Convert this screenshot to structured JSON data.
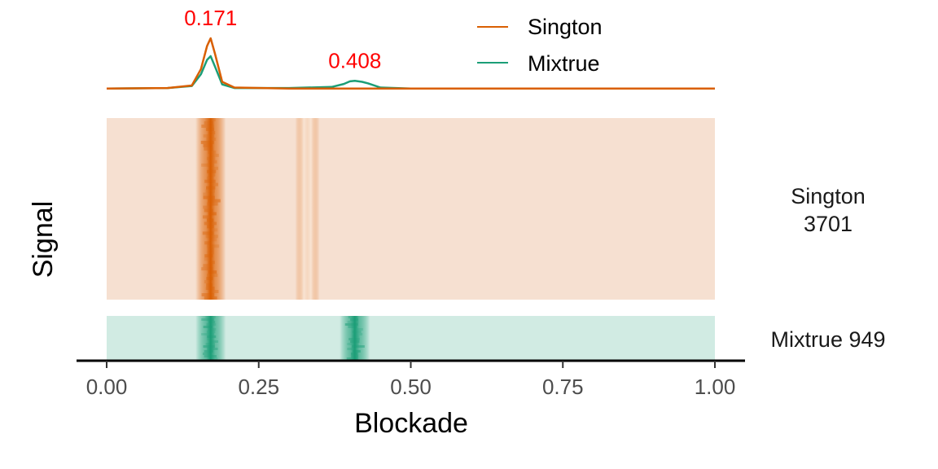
{
  "chart_data": {
    "type": "line+heatmap",
    "xlabel": "Blockade",
    "ylabel": "Signal",
    "xlim": [
      0,
      1
    ],
    "x_ticks": [
      "0.00",
      "0.25",
      "0.50",
      "0.75",
      "1.00"
    ],
    "legend": {
      "placement": "top-center",
      "entries": [
        "Sington",
        "Mixtrue"
      ]
    },
    "colors": {
      "Sington": "#d95f02",
      "Mixtrue": "#1b9e77",
      "Sington_bg": "#f6e0d1",
      "Mixtrue_bg": "#d1ebe3",
      "annotation": "#ff0000"
    },
    "density_series": [
      {
        "name": "Sington",
        "x": [
          0.0,
          0.1,
          0.14,
          0.155,
          0.165,
          0.171,
          0.178,
          0.19,
          0.21,
          0.3,
          0.37,
          0.4,
          0.408,
          0.42,
          0.45,
          0.5,
          1.0
        ],
        "y": [
          0.02,
          0.03,
          0.08,
          0.4,
          0.85,
          1.0,
          0.7,
          0.15,
          0.04,
          0.02,
          0.02,
          0.02,
          0.02,
          0.02,
          0.02,
          0.02,
          0.02
        ]
      },
      {
        "name": "Mixtrue",
        "x": [
          0.0,
          0.1,
          0.14,
          0.155,
          0.165,
          0.171,
          0.178,
          0.19,
          0.21,
          0.3,
          0.37,
          0.39,
          0.4,
          0.408,
          0.42,
          0.43,
          0.45,
          0.5,
          1.0
        ],
        "y": [
          0.02,
          0.03,
          0.07,
          0.3,
          0.58,
          0.65,
          0.45,
          0.1,
          0.03,
          0.03,
          0.05,
          0.11,
          0.16,
          0.17,
          0.15,
          0.12,
          0.04,
          0.02,
          0.02
        ]
      }
    ],
    "peak_annotations": [
      {
        "x": 0.171,
        "label": "0.171"
      },
      {
        "x": 0.408,
        "label": "0.408"
      }
    ],
    "heatmap_panels": [
      {
        "name": "Sington",
        "label_lines": [
          "Sington",
          "3701"
        ],
        "count": 3701,
        "peaks": [
          0.171
        ],
        "tail": [
          0.33
        ]
      },
      {
        "name": "Mixtrue",
        "label_lines": [
          "Mixtrue 949"
        ],
        "count": 949,
        "peaks": [
          0.171,
          0.408
        ]
      }
    ]
  }
}
